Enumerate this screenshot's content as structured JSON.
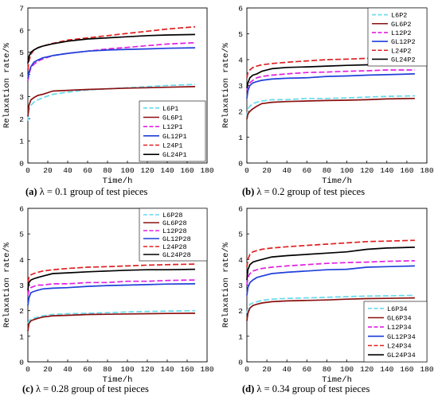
{
  "chart_data": [
    {
      "type": "line",
      "xlabel": "Time/h",
      "ylabel": "Relaxation rate/%",
      "xlim": [
        0,
        180
      ],
      "ylim": [
        0,
        7
      ],
      "xticks": [
        "0",
        "20",
        "40",
        "60",
        "80",
        "100",
        "120",
        "140",
        "160",
        "180"
      ],
      "yticks": [
        "0",
        "1",
        "2",
        "3",
        "4",
        "5",
        "6",
        "7"
      ],
      "legend": "bottom-right",
      "grid": false,
      "caption": {
        "label": "(a)",
        "text": " λ = 0.1 group of test pieces"
      },
      "x": [
        0,
        1,
        3,
        6,
        10,
        15,
        25,
        40,
        60,
        80,
        100,
        120,
        140,
        168
      ],
      "series": [
        {
          "name": "L6P1",
          "color": "#66d9ee",
          "dash": true,
          "values": [
            1.9,
            2.4,
            2.6,
            2.75,
            2.85,
            2.95,
            3.1,
            3.2,
            3.3,
            3.35,
            3.4,
            3.45,
            3.5,
            3.55
          ]
        },
        {
          "name": "GL6P1",
          "color": "#8b1010",
          "dash": false,
          "values": [
            2.1,
            2.6,
            2.85,
            2.95,
            3.05,
            3.1,
            3.25,
            3.28,
            3.32,
            3.35,
            3.38,
            3.4,
            3.42,
            3.45
          ]
        },
        {
          "name": "L12P1",
          "color": "#e020e0",
          "dash": true,
          "values": [
            3.7,
            4.0,
            4.3,
            4.45,
            4.6,
            4.7,
            4.85,
            4.95,
            5.05,
            5.15,
            5.22,
            5.3,
            5.37,
            5.43
          ]
        },
        {
          "name": "GL12P1",
          "color": "#1f3fd8",
          "dash": false,
          "values": [
            3.8,
            4.1,
            4.35,
            4.55,
            4.65,
            4.75,
            4.85,
            4.95,
            5.05,
            5.1,
            5.13,
            5.15,
            5.18,
            5.2
          ]
        },
        {
          "name": "L24P1",
          "color": "#e02020",
          "dash": true,
          "values": [
            4.2,
            4.6,
            4.9,
            5.1,
            5.2,
            5.28,
            5.4,
            5.55,
            5.65,
            5.75,
            5.85,
            5.95,
            6.05,
            6.15
          ]
        },
        {
          "name": "GL24P1",
          "color": "#000000",
          "dash": false,
          "values": [
            4.5,
            4.8,
            5.0,
            5.1,
            5.2,
            5.28,
            5.38,
            5.5,
            5.6,
            5.65,
            5.7,
            5.75,
            5.78,
            5.8
          ]
        }
      ]
    },
    {
      "type": "line",
      "xlabel": "Time/h",
      "ylabel": "Relaxation rate/%",
      "xlim": [
        0,
        180
      ],
      "ylim": [
        0,
        6
      ],
      "xticks": [
        "0",
        "20",
        "40",
        "60",
        "80",
        "100",
        "120",
        "140",
        "160",
        "180"
      ],
      "yticks": [
        "0",
        "1",
        "2",
        "3",
        "4",
        "5",
        "6"
      ],
      "legend": "top-right",
      "grid": false,
      "caption": {
        "label": "(b)",
        "text": " λ = 0.2 group of test pieces"
      },
      "x": [
        0,
        1,
        3,
        6,
        10,
        15,
        25,
        40,
        60,
        80,
        100,
        120,
        140,
        168
      ],
      "series": [
        {
          "name": "L6P2",
          "color": "#66d9ee",
          "dash": true,
          "values": [
            1.8,
            2.1,
            2.2,
            2.3,
            2.35,
            2.4,
            2.45,
            2.45,
            2.5,
            2.5,
            2.52,
            2.55,
            2.58,
            2.6
          ]
        },
        {
          "name": "GL6P2",
          "color": "#8b1010",
          "dash": false,
          "values": [
            1.7,
            1.9,
            2.0,
            2.1,
            2.2,
            2.3,
            2.35,
            2.38,
            2.4,
            2.42,
            2.43,
            2.45,
            2.48,
            2.5
          ]
        },
        {
          "name": "L12P2",
          "color": "#e020e0",
          "dash": true,
          "values": [
            2.8,
            3.0,
            3.1,
            3.2,
            3.3,
            3.35,
            3.4,
            3.45,
            3.5,
            3.52,
            3.55,
            3.57,
            3.6,
            3.6
          ]
        },
        {
          "name": "GL12P2",
          "color": "#1f3fd8",
          "dash": false,
          "values": [
            2.5,
            2.8,
            3.0,
            3.1,
            3.15,
            3.2,
            3.25,
            3.28,
            3.3,
            3.35,
            3.37,
            3.4,
            3.42,
            3.45
          ]
        },
        {
          "name": "L24P2",
          "color": "#e02020",
          "dash": true,
          "values": [
            3.3,
            3.5,
            3.6,
            3.7,
            3.75,
            3.8,
            3.85,
            3.9,
            3.95,
            4.0,
            4.02,
            4.05,
            4.07,
            4.1
          ]
        },
        {
          "name": "GL24P2",
          "color": "#000000",
          "dash": false,
          "values": [
            2.9,
            3.1,
            3.3,
            3.4,
            3.45,
            3.55,
            3.65,
            3.7,
            3.72,
            3.75,
            3.78,
            3.8,
            3.82,
            3.85
          ]
        }
      ]
    },
    {
      "type": "line",
      "xlabel": "Time/h",
      "ylabel": "Relaxation rate/%",
      "xlim": [
        0,
        180
      ],
      "ylim": [
        0,
        6
      ],
      "xticks": [
        "0",
        "20",
        "40",
        "60",
        "80",
        "100",
        "120",
        "140",
        "160",
        "180"
      ],
      "yticks": [
        "0",
        "1",
        "2",
        "3",
        "4",
        "5",
        "6"
      ],
      "legend": "top-right",
      "grid": false,
      "caption": {
        "label": "(c)",
        "text": " λ = 0.28 group of test pieces"
      },
      "x": [
        0,
        1,
        3,
        6,
        10,
        15,
        25,
        40,
        60,
        80,
        100,
        120,
        140,
        168
      ],
      "series": [
        {
          "name": "L6P28",
          "color": "#66d9ee",
          "dash": true,
          "values": [
            1.5,
            1.6,
            1.65,
            1.7,
            1.75,
            1.8,
            1.85,
            1.88,
            1.9,
            1.92,
            1.95,
            1.97,
            1.98,
            2.0
          ]
        },
        {
          "name": "GL6P28",
          "color": "#8b1010",
          "dash": false,
          "values": [
            1.2,
            1.5,
            1.6,
            1.65,
            1.7,
            1.75,
            1.8,
            1.82,
            1.85,
            1.86,
            1.87,
            1.88,
            1.89,
            1.9
          ]
        },
        {
          "name": "L12P28",
          "color": "#e020e0",
          "dash": true,
          "values": [
            2.6,
            2.8,
            2.9,
            2.95,
            3.0,
            3.0,
            3.05,
            3.05,
            3.1,
            3.1,
            3.15,
            3.15,
            3.18,
            3.2
          ]
        },
        {
          "name": "GL12P28",
          "color": "#1f3fd8",
          "dash": false,
          "values": [
            2.2,
            2.5,
            2.7,
            2.75,
            2.8,
            2.85,
            2.88,
            2.9,
            2.95,
            2.98,
            3.0,
            3.02,
            3.04,
            3.05
          ]
        },
        {
          "name": "L24P28",
          "color": "#e02020",
          "dash": true,
          "values": [
            3.1,
            3.3,
            3.4,
            3.45,
            3.5,
            3.55,
            3.6,
            3.65,
            3.7,
            3.72,
            3.75,
            3.78,
            3.8,
            3.82
          ]
        },
        {
          "name": "GL24P28",
          "color": "#000000",
          "dash": false,
          "values": [
            2.8,
            3.1,
            3.2,
            3.25,
            3.3,
            3.35,
            3.45,
            3.48,
            3.52,
            3.55,
            3.58,
            3.6,
            3.6,
            3.62
          ]
        }
      ]
    },
    {
      "type": "line",
      "xlabel": "Time/h",
      "ylabel": "Relaxation rate/%",
      "xlim": [
        0,
        180
      ],
      "ylim": [
        0,
        6
      ],
      "xticks": [
        "0",
        "20",
        "40",
        "60",
        "80",
        "100",
        "120",
        "140",
        "160",
        "180"
      ],
      "yticks": [
        "0",
        "1",
        "2",
        "3",
        "4",
        "5",
        "6"
      ],
      "legend": "bottom-right",
      "grid": false,
      "caption": {
        "label": "(d)",
        "text": " λ = 0.34 group of test pieces"
      },
      "x": [
        0,
        1,
        3,
        6,
        10,
        15,
        25,
        40,
        60,
        80,
        100,
        120,
        140,
        168
      ],
      "series": [
        {
          "name": "L6P34",
          "color": "#66d9ee",
          "dash": true,
          "values": [
            1.9,
            2.1,
            2.25,
            2.3,
            2.35,
            2.4,
            2.45,
            2.48,
            2.5,
            2.52,
            2.55,
            2.57,
            2.58,
            2.6
          ]
        },
        {
          "name": "GL6P34",
          "color": "#8b1010",
          "dash": false,
          "values": [
            1.6,
            1.9,
            2.1,
            2.2,
            2.25,
            2.3,
            2.35,
            2.38,
            2.4,
            2.42,
            2.45,
            2.47,
            2.48,
            2.5
          ]
        },
        {
          "name": "L12P34",
          "color": "#e020e0",
          "dash": true,
          "values": [
            3.0,
            3.3,
            3.45,
            3.55,
            3.6,
            3.65,
            3.7,
            3.75,
            3.8,
            3.85,
            3.88,
            3.9,
            3.93,
            3.95
          ]
        },
        {
          "name": "GL12P34",
          "color": "#1f3fd8",
          "dash": false,
          "values": [
            2.6,
            2.9,
            3.1,
            3.2,
            3.3,
            3.35,
            3.45,
            3.5,
            3.55,
            3.6,
            3.62,
            3.7,
            3.72,
            3.75
          ]
        },
        {
          "name": "L24P34",
          "color": "#e02020",
          "dash": true,
          "values": [
            3.7,
            4.0,
            4.2,
            4.3,
            4.35,
            4.4,
            4.45,
            4.5,
            4.55,
            4.6,
            4.65,
            4.7,
            4.72,
            4.75
          ]
        },
        {
          "name": "GL24P34",
          "color": "#000000",
          "dash": false,
          "values": [
            3.2,
            3.6,
            3.8,
            3.9,
            3.95,
            4.0,
            4.1,
            4.15,
            4.2,
            4.25,
            4.3,
            4.4,
            4.45,
            4.48
          ]
        }
      ]
    }
  ]
}
